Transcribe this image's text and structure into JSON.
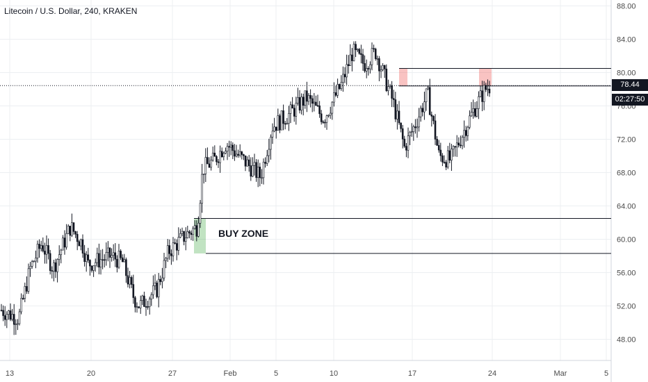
{
  "header": {
    "title": "Litecoin / U.S. Dollar, 240, KRAKEN"
  },
  "zones": {
    "buy_label": "BUY ZONE"
  },
  "price_scale": {
    "last_price": "78.44",
    "countdown": "02:27:50"
  },
  "colors": {
    "buy_zone": "#4caf50",
    "sell_zone": "#ef5350",
    "candle": "#131722",
    "grid": "#eceff2",
    "label_bg": "#131722"
  },
  "chart_data": {
    "type": "candlestick",
    "title": "Litecoin / U.S. Dollar, 240, KRAKEN",
    "ylim": [
      45,
      89
    ],
    "y_ticks": [
      "48.00",
      "52.00",
      "56.00",
      "60.00",
      "64.00",
      "68.00",
      "72.00",
      "76.00",
      "80.00",
      "84.00",
      "88.00"
    ],
    "x_ticks": [
      "13",
      "20",
      "27",
      "Feb",
      "5",
      "10",
      "17",
      "24",
      "Mar",
      "5"
    ],
    "last_price": 78.44,
    "buy_zone": {
      "top": 62.5,
      "bottom": 58.3
    },
    "resistance": {
      "top": 80.5,
      "bottom": 78.4
    },
    "trajectory": [
      {
        "t": 0,
        "p": 51.5
      },
      {
        "t": 0.03,
        "p": 50.5
      },
      {
        "t": 0.05,
        "p": 56.5
      },
      {
        "t": 0.07,
        "p": 59.5
      },
      {
        "t": 0.09,
        "p": 56.5
      },
      {
        "t": 0.12,
        "p": 61.5
      },
      {
        "t": 0.14,
        "p": 59.5
      },
      {
        "t": 0.15,
        "p": 57.0
      },
      {
        "t": 0.19,
        "p": 58.0
      },
      {
        "t": 0.21,
        "p": 57.3
      },
      {
        "t": 0.23,
        "p": 53.0
      },
      {
        "t": 0.24,
        "p": 52.0
      },
      {
        "t": 0.27,
        "p": 54.0
      },
      {
        "t": 0.29,
        "p": 58.5
      },
      {
        "t": 0.32,
        "p": 60.5
      },
      {
        "t": 0.34,
        "p": 61.5
      },
      {
        "t": 0.35,
        "p": 68.5
      },
      {
        "t": 0.37,
        "p": 69.5
      },
      {
        "t": 0.39,
        "p": 71.5
      },
      {
        "t": 0.42,
        "p": 69.5
      },
      {
        "t": 0.45,
        "p": 67.5
      },
      {
        "t": 0.47,
        "p": 73.5
      },
      {
        "t": 0.5,
        "p": 75.0
      },
      {
        "t": 0.53,
        "p": 77.0
      },
      {
        "t": 0.56,
        "p": 74.5
      },
      {
        "t": 0.59,
        "p": 78.5
      },
      {
        "t": 0.61,
        "p": 82.5
      },
      {
        "t": 0.63,
        "p": 81.0
      },
      {
        "t": 0.65,
        "p": 82.5
      },
      {
        "t": 0.67,
        "p": 78.5
      },
      {
        "t": 0.68,
        "p": 76.5
      },
      {
        "t": 0.7,
        "p": 71.0
      },
      {
        "t": 0.72,
        "p": 74.0
      },
      {
        "t": 0.74,
        "p": 77.5
      },
      {
        "t": 0.76,
        "p": 70.0
      },
      {
        "t": 0.78,
        "p": 69.5
      },
      {
        "t": 0.8,
        "p": 72.5
      },
      {
        "t": 0.82,
        "p": 75.5
      },
      {
        "t": 0.84,
        "p": 78.0
      },
      {
        "t": 0.85,
        "p": 78.44
      }
    ]
  }
}
